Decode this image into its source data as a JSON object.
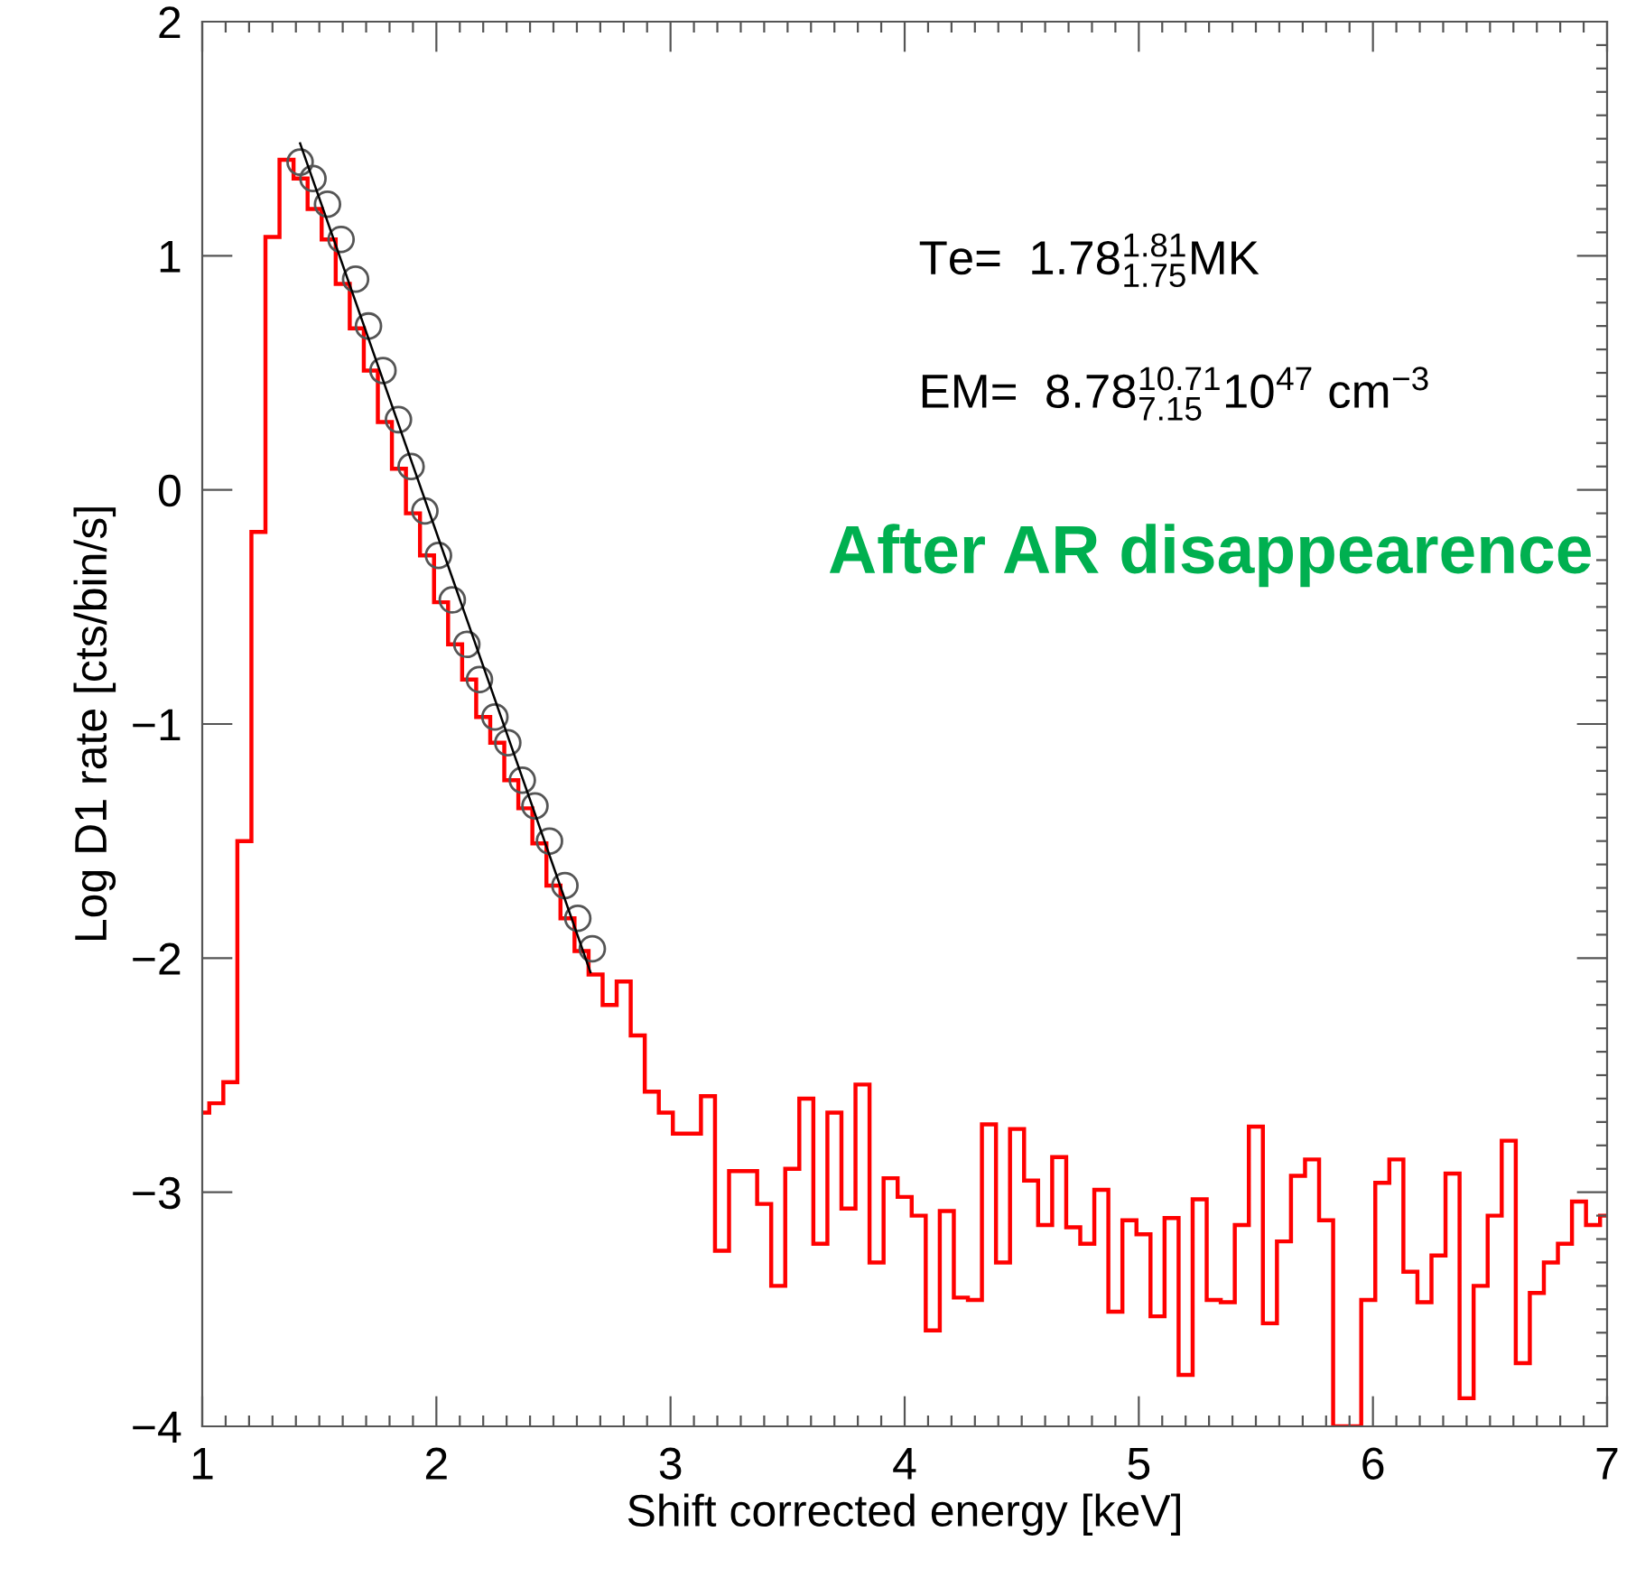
{
  "chart_data": {
    "type": "histogram",
    "xlabel": "Shift corrected energy [keV]",
    "ylabel": "Log D1 rate [cts/bin/s]",
    "xlim": [
      1,
      7
    ],
    "xticks": [
      1,
      2,
      3,
      4,
      5,
      6,
      7
    ],
    "ylim": [
      -4,
      2
    ],
    "yticks": [
      {
        "value": -4,
        "label": "−4"
      },
      {
        "value": -3,
        "label": "−3"
      },
      {
        "value": -2,
        "label": "−2"
      },
      {
        "value": -1,
        "label": "−1"
      },
      0,
      1,
      2
    ],
    "annotations": [
      "Te=  1.78$^{1.81}$$_{1.75}$MK",
      "EM=  8.78$^{10.71}$$_{7.15}$10$^{47}$ cm$^{−3}$",
      "After AR disappearence"
    ],
    "series": [
      {
        "color": "#ff0000",
        "bins": [
          1.0,
          1.03,
          1.09,
          1.15,
          1.21,
          1.27,
          1.33,
          1.39,
          1.45,
          1.51,
          1.57,
          1.63,
          1.69,
          1.75,
          1.81,
          1.87,
          1.93,
          1.99,
          2.05,
          2.11,
          2.17,
          2.23,
          2.29,
          2.35,
          2.41,
          2.47,
          2.53,
          2.59,
          2.65,
          2.71,
          2.77,
          2.83,
          2.89,
          2.95,
          3.01,
          3.07,
          3.13,
          3.19,
          3.25,
          3.31,
          3.37,
          3.43,
          3.49,
          3.55,
          3.61,
          3.67,
          3.73,
          3.79,
          3.85,
          3.91,
          3.97,
          4.03,
          4.09,
          4.15,
          4.21,
          4.27,
          4.33,
          4.39,
          4.45,
          4.51,
          4.57,
          4.63,
          4.69,
          4.75,
          4.81,
          4.87,
          4.93,
          4.99,
          5.05,
          5.11,
          5.17,
          5.23,
          5.29,
          5.35,
          5.41,
          5.47,
          5.53,
          5.59,
          5.65,
          5.71,
          5.77,
          5.83,
          5.89,
          5.95,
          6.01,
          6.07,
          6.13,
          6.19,
          6.25,
          6.31,
          6.37,
          6.43,
          6.49,
          6.55,
          6.61,
          6.67,
          6.73,
          6.79,
          6.85,
          6.91,
          6.97,
          7.0
        ],
        "values": [
          -2.66,
          -2.62,
          -2.53,
          -1.5,
          -0.18,
          1.08,
          1.41,
          1.33,
          1.2,
          1.07,
          0.88,
          0.69,
          0.51,
          0.29,
          0.09,
          -0.1,
          -0.28,
          -0.48,
          -0.66,
          -0.81,
          -0.97,
          -1.08,
          -1.24,
          -1.36,
          -1.51,
          -1.69,
          -1.83,
          -1.97,
          -2.07,
          -2.2,
          -2.1,
          -2.33,
          -2.57,
          -2.66,
          -2.75,
          -2.75,
          -2.59,
          -3.25,
          -2.91,
          -2.91,
          -3.05,
          -3.4,
          -2.9,
          -2.6,
          -3.22,
          -2.66,
          -3.07,
          -2.54,
          -3.3,
          -2.94,
          -3.02,
          -3.1,
          -3.59,
          -3.08,
          -3.45,
          -3.46,
          -2.71,
          -3.3,
          -2.73,
          -2.95,
          -3.14,
          -2.85,
          -3.15,
          -3.22,
          -2.99,
          -3.51,
          -3.12,
          -3.18,
          -3.53,
          -3.11,
          -3.78,
          -3.03,
          -3.46,
          -3.47,
          -3.14,
          -2.72,
          -3.56,
          -3.21,
          -2.93,
          -2.86,
          -3.12,
          -4.0,
          -4.0,
          -3.46,
          -2.96,
          -2.86,
          -3.34,
          -3.47,
          -3.27,
          -2.92,
          -3.88,
          -3.4,
          -3.1,
          -2.78,
          -3.73,
          -3.43,
          -3.3,
          -3.22,
          -3.04,
          -3.14,
          -3.1
        ]
      },
      {
        "type": "scatter",
        "marker": "circle",
        "color": "#555555",
        "x": [
          1.418,
          1.473,
          1.535,
          1.593,
          1.655,
          1.71,
          1.772,
          1.838,
          1.892,
          1.951,
          2.009,
          2.068,
          2.13,
          2.184,
          2.25,
          2.305,
          2.367,
          2.421,
          2.483,
          2.549,
          2.604,
          2.666
        ],
        "values": [
          1.4,
          1.33,
          1.22,
          1.07,
          0.9,
          0.7,
          0.51,
          0.3,
          0.1,
          -0.09,
          -0.28,
          -0.47,
          -0.66,
          -0.81,
          -0.97,
          -1.08,
          -1.24,
          -1.35,
          -1.5,
          -1.69,
          -1.83,
          -1.96
        ]
      },
      {
        "type": "line",
        "color": "#000000",
        "x": [
          1.418,
          2.658
        ],
        "values": [
          1.48,
          -2.06
        ]
      }
    ]
  }
}
